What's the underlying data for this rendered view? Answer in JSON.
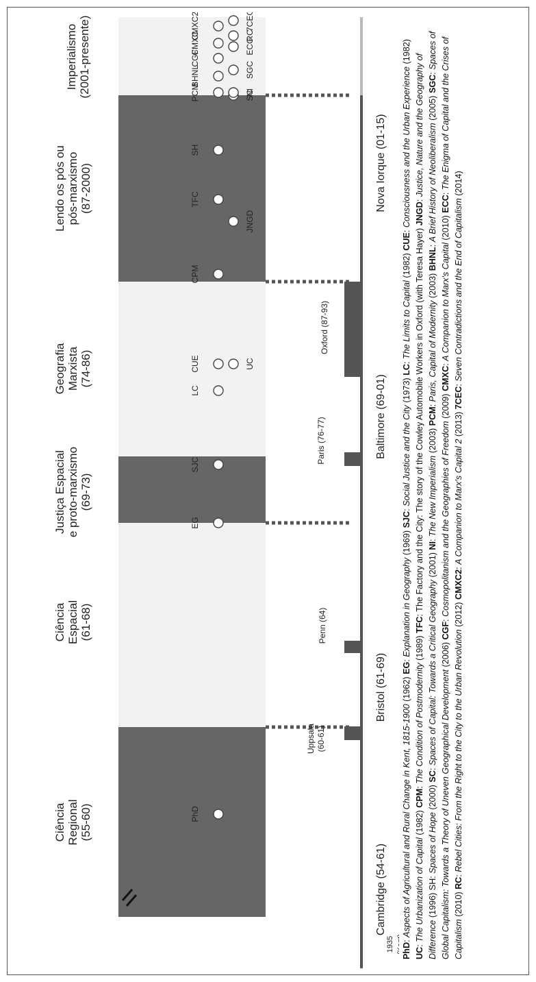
{
  "periods": [
    {
      "label": "Ciência\nRegional\n(55-60)"
    },
    {
      "label": "Ciência\nEspacial\n(61-68)"
    },
    {
      "label": "Justiça Espacial\ne proto-marxismo\n(69-73)"
    },
    {
      "label": "Geografia\nMarxista\n(74-86)"
    },
    {
      "label": "Lendo os pós ou\npós-marxismo\n(87-2000)"
    },
    {
      "label": "Imperialismo\n(2001-presente)"
    }
  ],
  "works_top": [
    {
      "label": "PhD"
    },
    {
      "label": "EG"
    },
    {
      "label": "SJC"
    },
    {
      "label": "LC"
    },
    {
      "label": "CUE"
    },
    {
      "label": "CPM"
    },
    {
      "label": "TFC"
    },
    {
      "label": "SH"
    },
    {
      "label": "PCM"
    },
    {
      "label": "BHNL"
    },
    {
      "label": "CGF"
    },
    {
      "label": "CMXC"
    },
    {
      "label": "CMXC2"
    }
  ],
  "works_bottom": [
    {
      "label": "UC"
    },
    {
      "label": "JNGD"
    },
    {
      "label": "SC"
    },
    {
      "label": "NI"
    },
    {
      "label": "SGC"
    },
    {
      "label": "ECC"
    },
    {
      "label": "RC"
    },
    {
      "label": "7CEC"
    }
  ],
  "stays": [
    {
      "label": "Uppsala\n(60-61)"
    },
    {
      "label": "Penn (64)"
    },
    {
      "label": "Paris (76-77)"
    },
    {
      "label": "Oxford (87-93)"
    }
  ],
  "cities": [
    {
      "label": "Cambridge  (54-61)"
    },
    {
      "label": "Bristol (61-69)"
    },
    {
      "label": "Baltimore (69-01)"
    },
    {
      "label": "Nova Iorque  (01-15)"
    }
  ],
  "birth": {
    "year": "1935",
    "place": "(Kent)"
  },
  "caption": [
    {
      "b": "PhD"
    },
    {
      "t": ": "
    },
    {
      "i": "Aspects of Agricultural and Rural Change in Kent, 1815-1900"
    },
    {
      "t": " (1962) "
    },
    {
      "b": "EG"
    },
    {
      "t": ": "
    },
    {
      "i": "Explanation in Geography"
    },
    {
      "t": " (1969) "
    },
    {
      "b": "SJC"
    },
    {
      "t": ": "
    },
    {
      "i": "Social Justice and the City"
    },
    {
      "t": " (1973) "
    },
    {
      "b": "LC"
    },
    {
      "t": ": "
    },
    {
      "i": "The Limits to Capital"
    },
    {
      "t": " (1982) "
    },
    {
      "b": "CUE"
    },
    {
      "t": ": "
    },
    {
      "i": "Consciousness and the Urban Experience"
    },
    {
      "t": " (1982) "
    },
    {
      "b": "UC"
    },
    {
      "t": ": "
    },
    {
      "i": "The Urbanization of Capital"
    },
    {
      "t": " (1982) "
    },
    {
      "b": "CPM"
    },
    {
      "t": ": "
    },
    {
      "i": "The Condition of Postmodernity"
    },
    {
      "t": " (1989) "
    },
    {
      "b": "TFC"
    },
    {
      "t": ": The Factory and the City: The story of the Cowley Automobile Workers in Oxford (with Teresa Hayer) "
    },
    {
      "b": "JNGD"
    },
    {
      "t": ": "
    },
    {
      "i": "Justice, Nature and the Geography of Difference"
    },
    {
      "t": " (1996) SH: "
    },
    {
      "i": "Spaces of Hope"
    },
    {
      "t": " (2000) "
    },
    {
      "b": "SC"
    },
    {
      "t": ": "
    },
    {
      "i": "Spaces of Capital: Towards a Critical Geography"
    },
    {
      "t": " (2001) "
    },
    {
      "b": "NI"
    },
    {
      "t": ": "
    },
    {
      "i": "The New Imperialism"
    },
    {
      "t": " (2003) "
    },
    {
      "b": "PCM"
    },
    {
      "t": ": "
    },
    {
      "i": "Paris, Capital of Modernity"
    },
    {
      "t": " (2003) "
    },
    {
      "b": "BHNL"
    },
    {
      "t": ": "
    },
    {
      "i": "A Brief History of Neoliberalism"
    },
    {
      "t": " (2005) "
    },
    {
      "b": "SGC"
    },
    {
      "t": ": "
    },
    {
      "i": "Spaces of Global Capitalism: Towards a Theory of Uneven Geographical Development"
    },
    {
      "t": " (2006) "
    },
    {
      "b": "CGF"
    },
    {
      "t": ": "
    },
    {
      "i": "Cosmopolitanism and the Geographies of Freedom"
    },
    {
      "t": " (2009) "
    },
    {
      "b": "CMXC"
    },
    {
      "t": ": "
    },
    {
      "i": "A Companion to Marx's Capital"
    },
    {
      "t": " (2010) "
    },
    {
      "b": "ECC"
    },
    {
      "t": ": "
    },
    {
      "i": "The Enigma of Capital and the Crises of Capitalism"
    },
    {
      "t": " (2010) "
    },
    {
      "b": "RC"
    },
    {
      "t": ": "
    },
    {
      "i": "Rebel Cities: From the Right to the City to the Urban Revolution"
    },
    {
      "t": " (2012) "
    },
    {
      "b": "CMXC2"
    },
    {
      "t": ": "
    },
    {
      "i": "A Companion to Marx's Capital 2"
    },
    {
      "t": " (2013) "
    },
    {
      "b": "7CEC"
    },
    {
      "t": ": "
    },
    {
      "i": "Seven Contradictions and the End of Capitalism"
    },
    {
      "t": " (2014)"
    }
  ],
  "colors": {
    "dark": "#666666",
    "light": "#f2f2f2",
    "bar": "#555555",
    "line": "#bbbbbb"
  }
}
